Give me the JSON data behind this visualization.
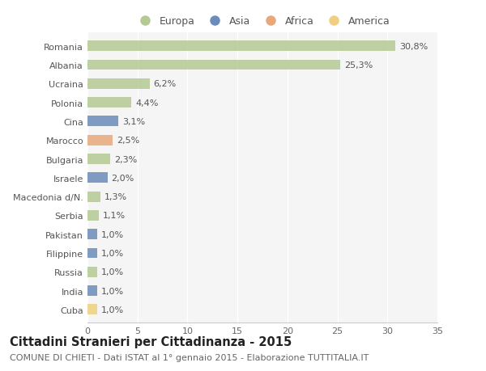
{
  "countries": [
    "Romania",
    "Albania",
    "Ucraina",
    "Polonia",
    "Cina",
    "Marocco",
    "Bulgaria",
    "Israele",
    "Macedonia d/N.",
    "Serbia",
    "Pakistan",
    "Filippine",
    "Russia",
    "India",
    "Cuba"
  ],
  "values": [
    30.8,
    25.3,
    6.2,
    4.4,
    3.1,
    2.5,
    2.3,
    2.0,
    1.3,
    1.1,
    1.0,
    1.0,
    1.0,
    1.0,
    1.0
  ],
  "labels": [
    "30,8%",
    "25,3%",
    "6,2%",
    "4,4%",
    "3,1%",
    "2,5%",
    "2,3%",
    "2,0%",
    "1,3%",
    "1,1%",
    "1,0%",
    "1,0%",
    "1,0%",
    "1,0%",
    "1,0%"
  ],
  "continents": [
    "Europa",
    "Europa",
    "Europa",
    "Europa",
    "Asia",
    "Africa",
    "Europa",
    "Asia",
    "Europa",
    "Europa",
    "Asia",
    "Asia",
    "Europa",
    "Asia",
    "America"
  ],
  "continent_colors": {
    "Europa": "#b5c994",
    "Asia": "#6b8cba",
    "Africa": "#e8a87c",
    "America": "#f0d080"
  },
  "legend_order": [
    "Europa",
    "Asia",
    "Africa",
    "America"
  ],
  "title": "Cittadini Stranieri per Cittadinanza - 2015",
  "subtitle": "COMUNE DI CHIETI - Dati ISTAT al 1° gennaio 2015 - Elaborazione TUTTITALIA.IT",
  "xlim": [
    0,
    35
  ],
  "xticks": [
    0,
    5,
    10,
    15,
    20,
    25,
    30,
    35
  ],
  "background_color": "#ffffff",
  "plot_bg_color": "#f5f5f5",
  "grid_color": "#ffffff",
  "bar_height": 0.55,
  "title_fontsize": 10.5,
  "subtitle_fontsize": 8,
  "tick_fontsize": 8,
  "label_fontsize": 8
}
